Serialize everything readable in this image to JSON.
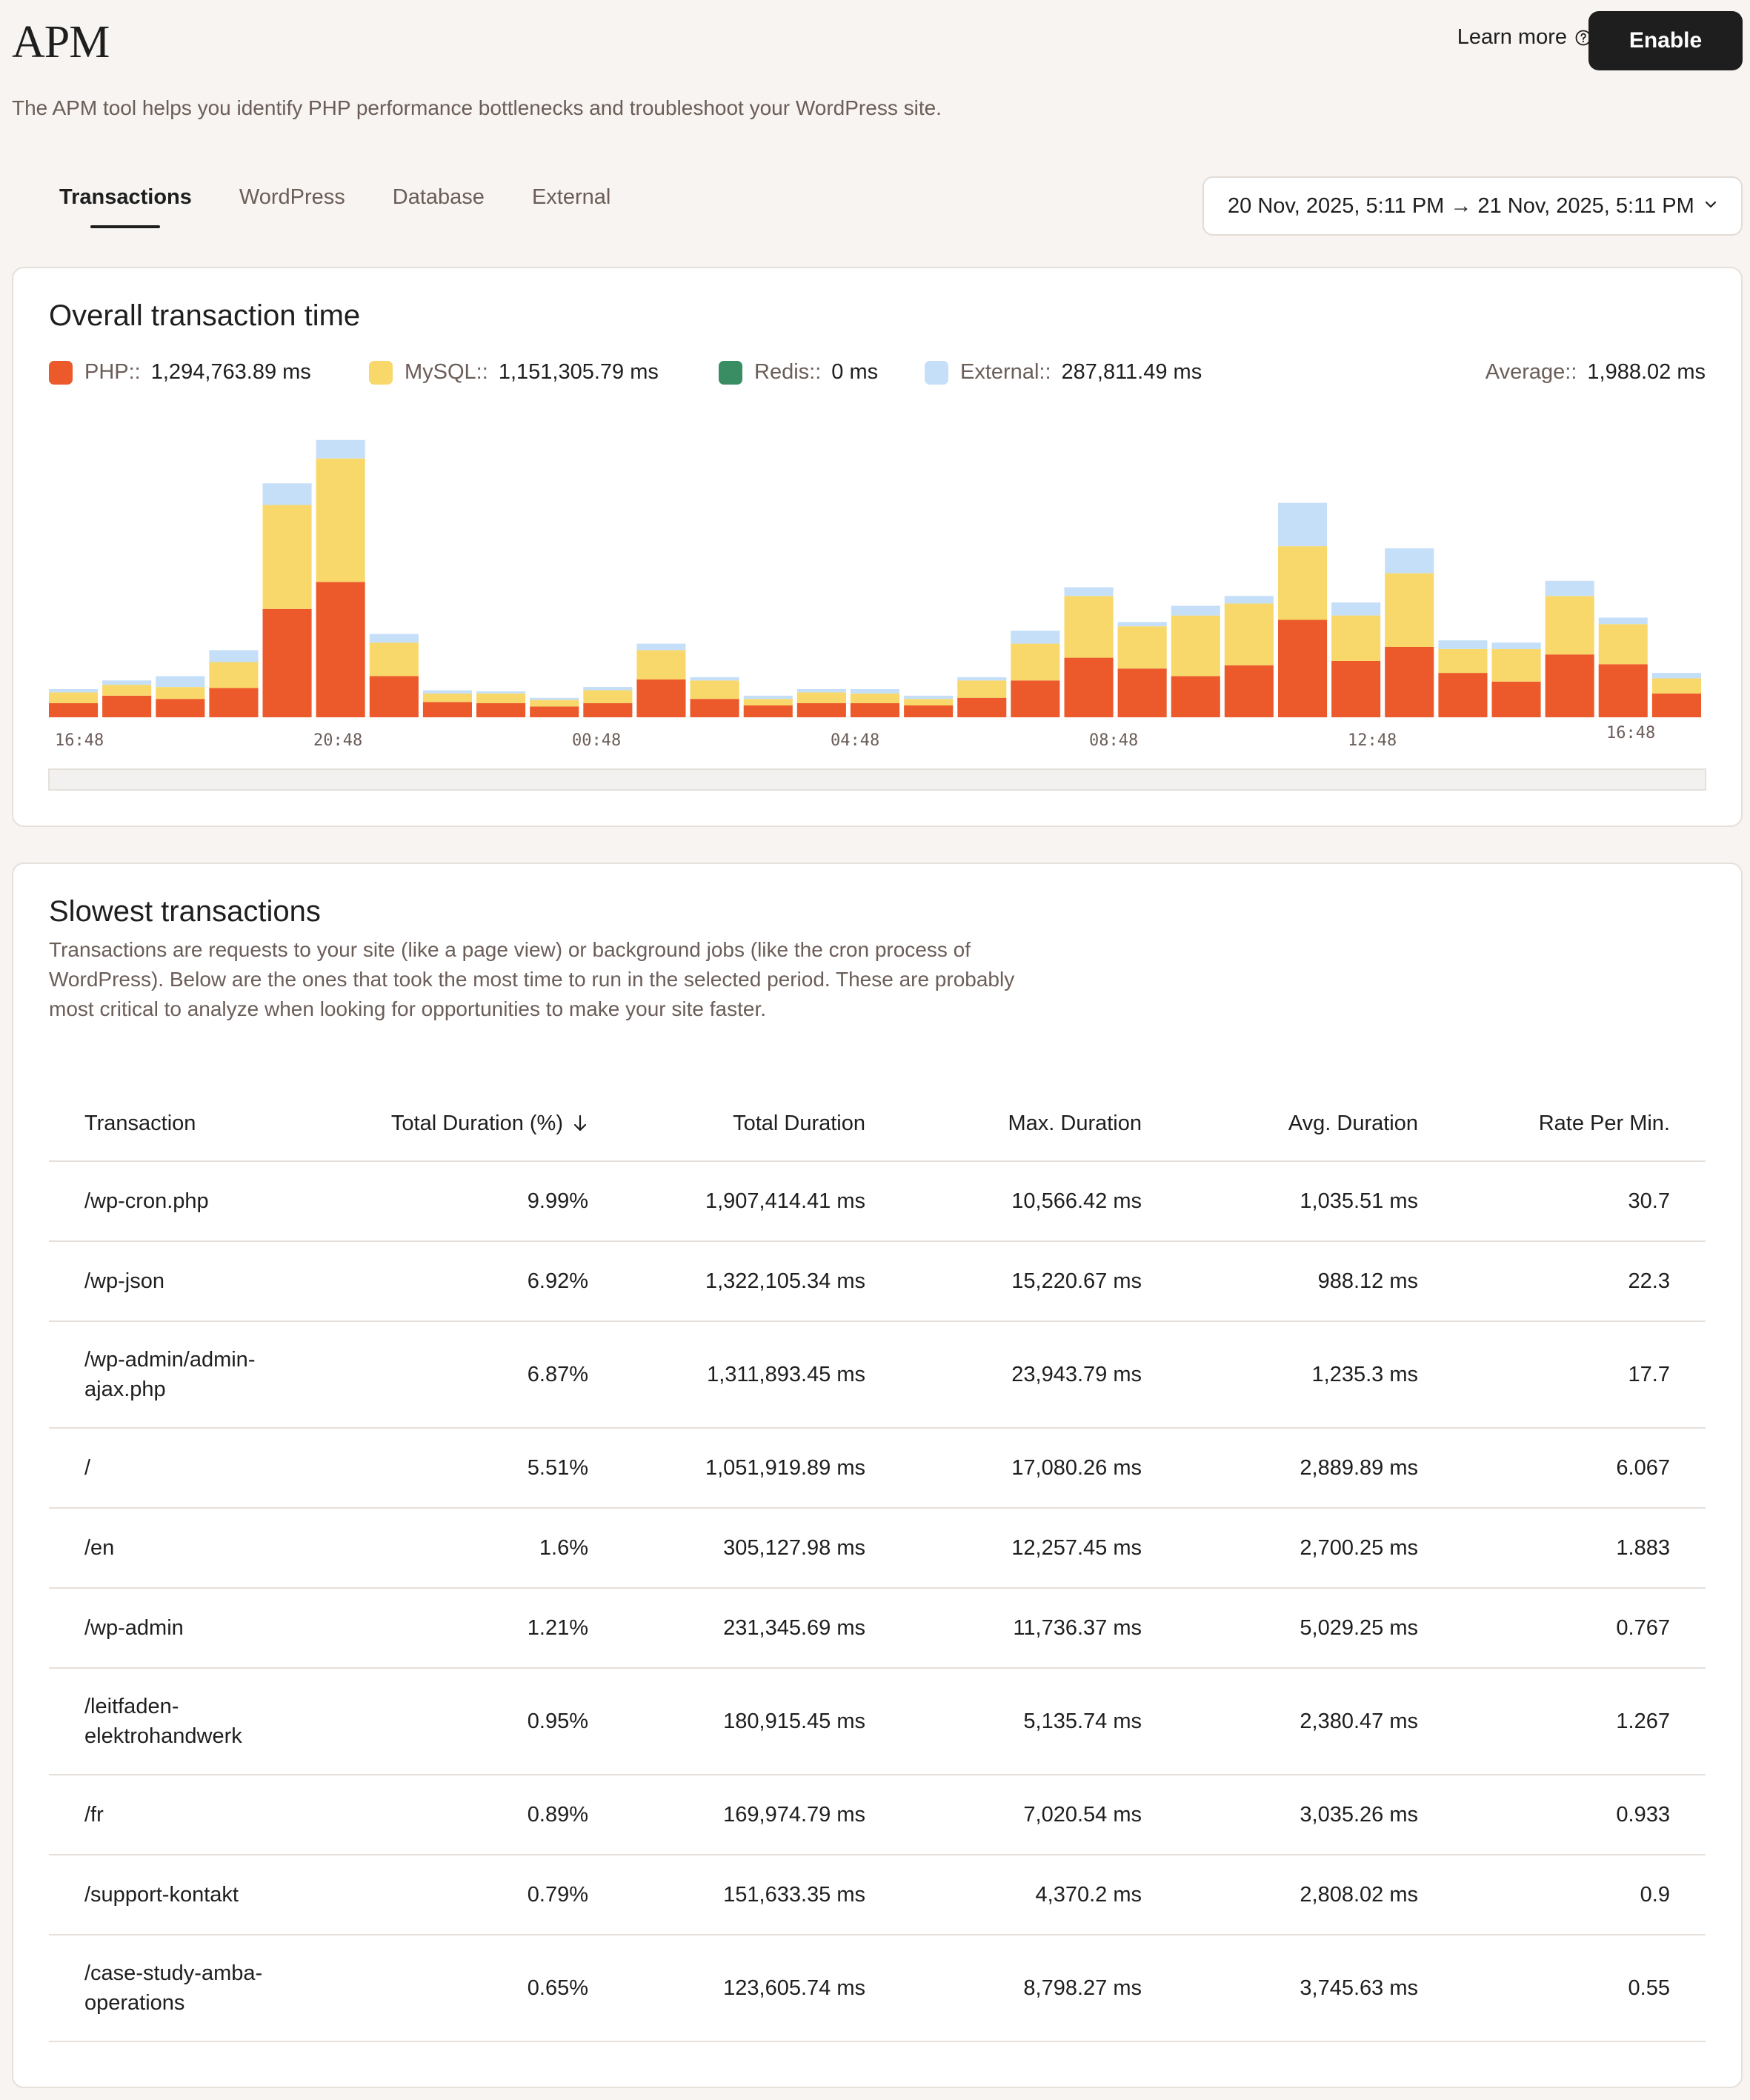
{
  "header": {
    "title": "APM",
    "learn_more": "Learn more",
    "enable": "Enable",
    "description": "The APM tool helps you identify PHP performance bottlenecks and troubleshoot your WordPress site."
  },
  "tabs": [
    {
      "label": "Transactions",
      "active": true
    },
    {
      "label": "WordPress",
      "active": false
    },
    {
      "label": "Database",
      "active": false
    },
    {
      "label": "External",
      "active": false
    }
  ],
  "date_range": "20 Nov, 2025, 5:11 PM → 21 Nov, 2025, 5:11 PM",
  "overview": {
    "title": "Overall transaction time",
    "legend": {
      "php": {
        "name": "PHP::",
        "value": "1,294,763.89 ms",
        "color": "#ec5a2b"
      },
      "mysql": {
        "name": "MySQL::",
        "value": "1,151,305.79 ms",
        "color": "#f8d86a"
      },
      "redis": {
        "name": "Redis::",
        "value": "0 ms",
        "color": "#3a8d63"
      },
      "external": {
        "name": "External::",
        "value": "287,811.49 ms",
        "color": "#c5dff8"
      },
      "average": {
        "name": "Average::",
        "value": "1,988.02 ms"
      }
    }
  },
  "chart_data": {
    "type": "bar",
    "stacked": true,
    "x_tick_labels": [
      "16:48",
      "20:48",
      "00:48",
      "04:48",
      "08:48",
      "12:48",
      "16:48"
    ],
    "series": [
      {
        "name": "PHP",
        "color": "#ec5a2b",
        "values": [
          130,
          200,
          170,
          270,
          1000,
          1250,
          380,
          140,
          130,
          100,
          130,
          350,
          170,
          110,
          130,
          130,
          110,
          180,
          340,
          550,
          450,
          380,
          480,
          900,
          520,
          650,
          410,
          330,
          580,
          490,
          220
        ]
      },
      {
        "name": "MySQL",
        "color": "#f8d86a",
        "values": [
          100,
          100,
          110,
          240,
          960,
          1140,
          310,
          80,
          90,
          60,
          120,
          270,
          170,
          60,
          100,
          90,
          60,
          160,
          340,
          570,
          390,
          560,
          570,
          680,
          420,
          680,
          220,
          300,
          540,
          370,
          140
        ]
      },
      {
        "name": "Redis",
        "color": "#3a8d63",
        "values": [
          0,
          0,
          0,
          0,
          0,
          0,
          0,
          0,
          0,
          0,
          0,
          0,
          0,
          0,
          0,
          0,
          0,
          0,
          0,
          0,
          0,
          0,
          0,
          0,
          0,
          0,
          0,
          0,
          0,
          0,
          0
        ]
      },
      {
        "name": "External",
        "color": "#c5dff8",
        "values": [
          30,
          40,
          100,
          110,
          200,
          170,
          80,
          30,
          20,
          20,
          30,
          60,
          30,
          30,
          30,
          40,
          30,
          30,
          120,
          80,
          40,
          90,
          70,
          400,
          120,
          230,
          80,
          60,
          140,
          60,
          50
        ]
      }
    ]
  },
  "slowest": {
    "title": "Slowest transactions",
    "description": "Transactions are requests to your site (like a page view) or background jobs (like the cron process of WordPress). Below are the ones that took the most time to run in the selected period. These are probably most critical to analyze when looking for opportunities to make your site faster.",
    "columns": [
      "Transaction",
      "Total Duration (%)",
      "Total Duration",
      "Max. Duration",
      "Avg. Duration",
      "Rate Per Min."
    ],
    "rows": [
      [
        "/wp-cron.php",
        "9.99%",
        "1,907,414.41 ms",
        "10,566.42 ms",
        "1,035.51 ms",
        "30.7"
      ],
      [
        "/wp-json",
        "6.92%",
        "1,322,105.34 ms",
        "15,220.67 ms",
        "988.12 ms",
        "22.3"
      ],
      [
        "/wp-admin/admin-ajax.php",
        "6.87%",
        "1,311,893.45 ms",
        "23,943.79 ms",
        "1,235.3 ms",
        "17.7"
      ],
      [
        "/",
        "5.51%",
        "1,051,919.89 ms",
        "17,080.26 ms",
        "2,889.89 ms",
        "6.067"
      ],
      [
        "/en",
        "1.6%",
        "305,127.98 ms",
        "12,257.45 ms",
        "2,700.25 ms",
        "1.883"
      ],
      [
        "/wp-admin",
        "1.21%",
        "231,345.69 ms",
        "11,736.37 ms",
        "5,029.25 ms",
        "0.767"
      ],
      [
        "/leitfaden-elektrohandwerk",
        "0.95%",
        "180,915.45 ms",
        "5,135.74 ms",
        "2,380.47 ms",
        "1.267"
      ],
      [
        "/fr",
        "0.89%",
        "169,974.79 ms",
        "7,020.54 ms",
        "3,035.26 ms",
        "0.933"
      ],
      [
        "/support-kontakt",
        "0.79%",
        "151,633.35 ms",
        "4,370.2 ms",
        "2,808.02 ms",
        "0.9"
      ],
      [
        "/case-study-amba-operations",
        "0.65%",
        "123,605.74 ms",
        "8,798.27 ms",
        "3,745.63 ms",
        "0.55"
      ]
    ]
  }
}
